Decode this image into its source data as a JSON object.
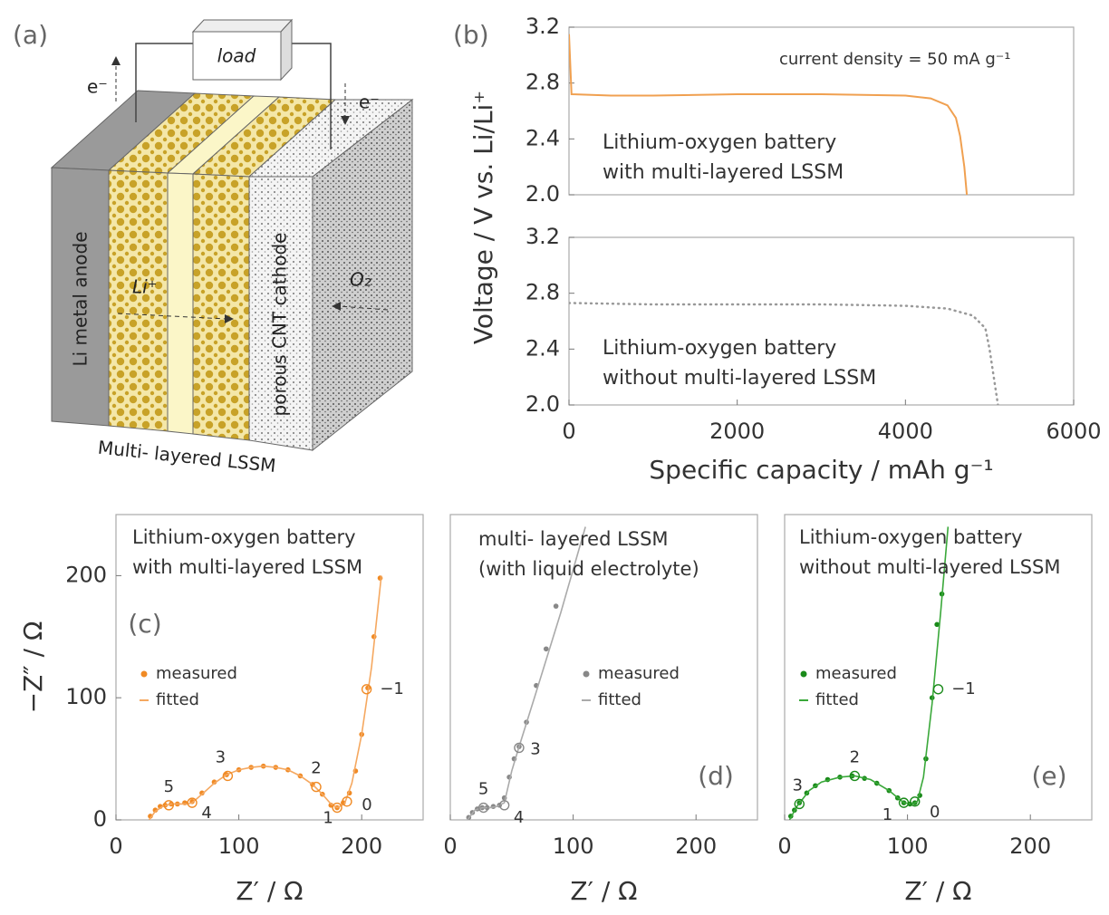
{
  "panel_labels": [
    "(a)",
    "(b)"
  ],
  "diagram": {
    "load": "load",
    "electron_left": "e⁻",
    "electron_right": "e⁻",
    "anode": "Li metal anode",
    "ion": "Li⁺",
    "cathode": "porous CNT cathode",
    "oxygen": "O₂",
    "separator": "Multi- layered LSSM"
  },
  "chart_data": [
    {
      "type": "line",
      "x": [
        0,
        30,
        500,
        1000,
        2000,
        3000,
        4000,
        4300,
        4500,
        4600,
        4650,
        4700,
        4730
      ],
      "values": [
        3.15,
        2.72,
        2.71,
        2.71,
        2.72,
        2.72,
        2.71,
        2.69,
        2.64,
        2.55,
        2.42,
        2.2,
        2.0
      ],
      "color": "#f0a050",
      "line_style": "solid",
      "xlim": [
        0,
        6000
      ],
      "ylim": [
        2.0,
        3.2
      ],
      "yticks": [
        {
          "value": 2.0,
          "label": "2.0"
        },
        2.4,
        2.8,
        3.2
      ],
      "annotations": [
        "current density  = 50 mA g⁻¹",
        "Lithium-oxygen battery",
        "with multi-layered LSSM"
      ],
      "annotation_color": "#f08a24"
    },
    {
      "type": "line",
      "x": [
        0,
        1000,
        2000,
        3000,
        4000,
        4500,
        4800,
        4950,
        5000,
        5050,
        5100
      ],
      "values": [
        2.73,
        2.72,
        2.72,
        2.72,
        2.71,
        2.69,
        2.64,
        2.55,
        2.4,
        2.2,
        2.0
      ],
      "color": "#999999",
      "line_style": "dotted",
      "xlim": [
        0,
        6000
      ],
      "ylim": [
        2.0,
        3.2
      ],
      "yticks": [
        {
          "value": 2.0,
          "label": "2.0"
        },
        2.4,
        2.8,
        3.2
      ],
      "xticks": [
        0,
        2000,
        4000,
        6000
      ],
      "xlabel": "Specific capacity / mAh g⁻¹",
      "ylabel": "Voltage / V vs. Li/Li⁺",
      "annotations": [
        "Lithium-oxygen battery",
        "without multi-layered LSSM"
      ],
      "annotation_color": "#3aa83a"
    },
    {
      "type": "scatter",
      "panel_label": "(c)",
      "xlim": [
        0,
        250
      ],
      "ylim": [
        0,
        250
      ],
      "xticks": [
        0,
        100,
        200
      ],
      "yticks": [
        0,
        100,
        200
      ],
      "xlabel": "Z′ / Ω",
      "ylabel": "−Z″ / Ω",
      "legend": "center-left",
      "annotations": [
        "Lithium-oxygen battery",
        "with multi-layered LSSM"
      ],
      "annotation_color": "#f08a24",
      "series": [
        {
          "name": "measured",
          "color": "#f08a24",
          "style": "points",
          "x": [
            28,
            32,
            36,
            40,
            45,
            50,
            56,
            62,
            70,
            80,
            90,
            100,
            110,
            120,
            130,
            140,
            150,
            160,
            168,
            175,
            180,
            185,
            190,
            195,
            200,
            205,
            210,
            215
          ],
          "values": [
            3,
            8,
            11,
            12,
            13,
            13,
            14,
            15,
            22,
            31,
            37,
            41,
            43,
            44,
            43,
            41,
            36,
            29,
            21,
            12,
            10,
            14,
            22,
            40,
            70,
            108,
            150,
            198
          ]
        },
        {
          "name": "fitted",
          "color": "#f5a860",
          "style": "line",
          "x": [
            27,
            32,
            38,
            45,
            52,
            58,
            62,
            70,
            80,
            90,
            100,
            110,
            120,
            130,
            140,
            150,
            160,
            168,
            175,
            180,
            186,
            192,
            200,
            208,
            216
          ],
          "values": [
            0,
            7,
            11,
            13,
            13,
            13,
            14,
            21,
            30,
            37,
            41,
            43,
            44,
            43,
            41,
            36,
            29,
            21,
            13,
            10,
            13,
            30,
            70,
            125,
            200
          ]
        }
      ],
      "marked_points": {
        "labels": [
          "5",
          "4",
          "3",
          "2",
          "1",
          "0",
          "−1"
        ],
        "x": [
          43,
          62,
          91,
          163,
          180,
          188,
          204
        ],
        "values": [
          12,
          14,
          36,
          27,
          10,
          15,
          107
        ]
      }
    },
    {
      "type": "scatter",
      "panel_label": "(d)",
      "xlim": [
        0,
        250
      ],
      "ylim": [
        0,
        250
      ],
      "xticks": [
        0,
        100,
        200
      ],
      "xlabel": "Z′ / Ω",
      "legend": "center-right",
      "annotations": [
        "multi- layered LSSM",
        "(with liquid electrolyte)"
      ],
      "annotation_color": "#666666",
      "series": [
        {
          "name": "measured",
          "color": "#888888",
          "style": "points",
          "x": [
            15,
            18,
            22,
            26,
            30,
            35,
            40,
            44,
            48,
            52,
            56,
            62,
            70,
            78,
            86
          ],
          "values": [
            2,
            6,
            9,
            10,
            10,
            11,
            12,
            18,
            35,
            50,
            60,
            80,
            110,
            140,
            175
          ]
        },
        {
          "name": "fitted",
          "color": "#aaaaaa",
          "style": "line",
          "x": [
            14,
            20,
            26,
            32,
            38,
            44,
            50,
            56,
            70,
            90,
            110
          ],
          "values": [
            0,
            8,
            10,
            10,
            11,
            14,
            40,
            60,
            105,
            170,
            240
          ]
        }
      ],
      "marked_points": {
        "labels": [
          "5",
          "4",
          "3"
        ],
        "x": [
          27,
          44,
          56
        ],
        "values": [
          10,
          12,
          59
        ]
      }
    },
    {
      "type": "scatter",
      "panel_label": "(e)",
      "xlim": [
        0,
        250
      ],
      "ylim": [
        0,
        250
      ],
      "xticks": [
        0,
        100,
        200
      ],
      "xlabel": "Z′ / Ω",
      "legend": "center-left",
      "annotations": [
        "Lithium-oxygen battery",
        "without multi-layered LSSM"
      ],
      "annotation_color": "#1f961f",
      "series": [
        {
          "name": "measured",
          "color": "#1a8a1a",
          "style": "points",
          "x": [
            5,
            8,
            12,
            18,
            25,
            35,
            45,
            55,
            65,
            75,
            85,
            92,
            97,
            102,
            106,
            110,
            115,
            120,
            124,
            128
          ],
          "values": [
            3,
            8,
            14,
            22,
            28,
            33,
            35,
            36,
            34,
            30,
            24,
            18,
            14,
            13,
            14,
            20,
            50,
            100,
            160,
            185
          ]
        },
        {
          "name": "fitted",
          "color": "#3aa83a",
          "style": "line",
          "x": [
            4,
            10,
            20,
            30,
            45,
            57,
            70,
            85,
            97,
            104,
            108,
            113,
            120,
            127,
            133
          ],
          "values": [
            0,
            11,
            24,
            31,
            35,
            36,
            33,
            24,
            14,
            13,
            15,
            35,
            95,
            170,
            240
          ]
        }
      ],
      "marked_points": {
        "labels": [
          "3",
          "2",
          "1",
          "0",
          "−1"
        ],
        "x": [
          12,
          57,
          97,
          106,
          125
        ],
        "values": [
          13,
          36,
          14,
          15,
          107
        ]
      }
    }
  ]
}
